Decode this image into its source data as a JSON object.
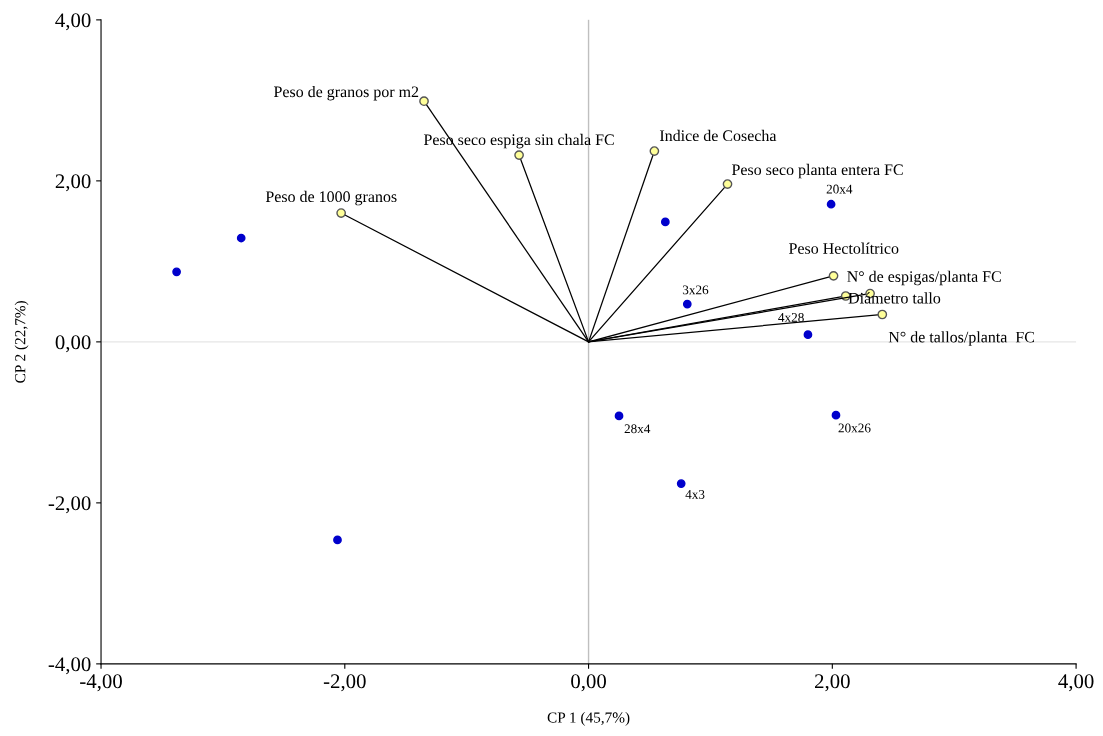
{
  "chart_data": {
    "type": "scatter",
    "xlabel": "CP 1 (45,7%)",
    "ylabel": "CP 2 (22,7%)",
    "xlim": [
      -4,
      4
    ],
    "ylim": [
      -4,
      4
    ],
    "xticks": [
      {
        "value": -4,
        "label": "-4,00"
      },
      {
        "value": -2,
        "label": "-2,00"
      },
      {
        "value": 0,
        "label": "0,00"
      },
      {
        "value": 2,
        "label": "2,00"
      },
      {
        "value": 4,
        "label": "4,00"
      }
    ],
    "yticks": [
      {
        "value": -4,
        "label": "-4,00"
      },
      {
        "value": -2,
        "label": "-2,00"
      },
      {
        "value": 0,
        "label": "0,00"
      },
      {
        "value": 2,
        "label": "2,00"
      },
      {
        "value": 4,
        "label": "4,00"
      }
    ],
    "ref_lines": [
      {
        "axis": "x",
        "value": 0,
        "color": "#bfbfbf"
      },
      {
        "axis": "y",
        "value": 0,
        "color": "#e6e6e6"
      }
    ],
    "grid": false,
    "legend": false,
    "marker": "circle",
    "series": [
      {
        "color": "#0000cc",
        "x": [
          -2.85,
          -3.38,
          0.63,
          1.99,
          0.81,
          1.8,
          0.25,
          2.03,
          0.76,
          -2.06
        ],
        "values": [
          1.29,
          0.87,
          1.49,
          1.71,
          0.47,
          0.09,
          -0.92,
          -0.91,
          -1.76,
          -2.46
        ],
        "value_labels": [
          null,
          null,
          null,
          "20x4",
          "3x26",
          "4x28",
          "28x4",
          "20x26",
          "4x3",
          null
        ]
      },
      {
        "type": "line",
        "name": "Peso de granos por m2",
        "color": "#000000",
        "x": [
          0,
          -1.35
        ],
        "values": [
          0,
          2.99
        ]
      },
      {
        "type": "line",
        "name": "Peso seco espiga sin chala FC",
        "color": "#000000",
        "x": [
          0,
          -0.57
        ],
        "values": [
          0,
          2.32
        ]
      },
      {
        "type": "line",
        "name": "Indice de Cosecha",
        "color": "#000000",
        "x": [
          0,
          0.54
        ],
        "values": [
          0,
          2.37
        ]
      },
      {
        "type": "line",
        "name": "Peso seco planta entera FC",
        "color": "#000000",
        "x": [
          0,
          1.14
        ],
        "values": [
          0,
          1.96
        ]
      },
      {
        "type": "line",
        "name": "Peso de 1000 granos",
        "color": "#000000",
        "x": [
          0,
          -2.03
        ],
        "values": [
          0,
          1.6
        ]
      },
      {
        "type": "line",
        "name": "Peso Hectolítrico",
        "color": "#000000",
        "x": [
          0,
          2.01
        ],
        "values": [
          0,
          0.82
        ]
      },
      {
        "type": "line",
        "name": "N° de espigas/planta FC",
        "color": "#000000",
        "x": [
          0,
          2.11
        ],
        "values": [
          0,
          0.57
        ]
      },
      {
        "type": "line",
        "name": "Diámetro tallo",
        "color": "#000000",
        "x": [
          0,
          2.31
        ],
        "values": [
          0,
          0.6
        ]
      },
      {
        "type": "line",
        "name": "N° de tallos/planta  FC",
        "color": "#000000",
        "x": [
          0,
          2.41
        ],
        "values": [
          0,
          0.34
        ]
      }
    ]
  }
}
